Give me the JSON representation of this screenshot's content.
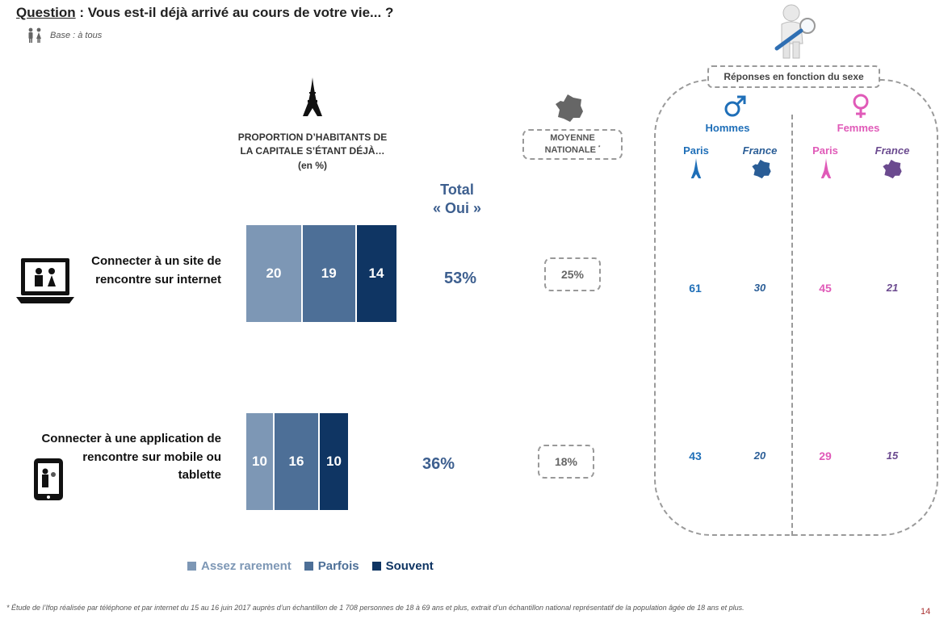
{
  "header": {
    "question_label": "Question",
    "question_text": " : Vous est-il déjà arrivé au cours de votre vie... ?",
    "base": "Base : à tous"
  },
  "column_heads": {
    "proportion_line1": "PROPORTION D’HABITANTS DE",
    "proportion_line2": "LA CAPITALE S’ÉTANT DÉJÀ…",
    "proportion_unit": "(en %)",
    "total_line1": "Total",
    "total_line2": "« Oui »",
    "national_line1": "MOYENNE",
    "national_line2": "NATIONALE",
    "national_mark": "*"
  },
  "gender_panel": {
    "title": "Réponses en fonction du sexe",
    "men_label": "Hommes",
    "women_label": "Femmes",
    "sub_paris": "Paris",
    "sub_france": "France",
    "colors": {
      "men": "#1f6fb8",
      "men_france": "#2a5d96",
      "women": "#e05ab8",
      "women_france": "#6b4a8f"
    }
  },
  "rows": [
    {
      "label_lines": [
        "Connecter à un site de",
        "rencontre sur internet"
      ],
      "total": "53%",
      "national": "25%",
      "men_paris": "61",
      "men_france": "30",
      "women_paris": "45",
      "women_france": "21"
    },
    {
      "label_lines": [
        "Connecter à une application de",
        "rencontre sur mobile ou",
        "tablette"
      ],
      "total": "36%",
      "national": "18%",
      "men_paris": "43",
      "men_france": "20",
      "women_paris": "29",
      "women_france": "15"
    }
  ],
  "chart_data": {
    "type": "bar",
    "orientation": "horizontal-stacked",
    "categories": [
      "Connecter à un site de rencontre sur internet",
      "Connecter à une application de rencontre sur mobile ou tablette"
    ],
    "series": [
      {
        "name": "Assez rarement",
        "values": [
          20,
          10
        ],
        "color": "#7d97b5"
      },
      {
        "name": "Parfois",
        "values": [
          19,
          16
        ],
        "color": "#4d6f97"
      },
      {
        "name": "Souvent",
        "values": [
          14,
          10
        ],
        "color": "#0f3563"
      }
    ],
    "legend": "bottom"
  },
  "footnote": "* Étude de l’Ifop réalisée par téléphone et par internet du 15 au 16 juin 2017 auprès d’un échantillon de 1 708 personnes de 18 à 69 ans et plus, extrait d’un échantillon national représentatif de la population âgée de 18 ans et plus.",
  "page_number": "14"
}
